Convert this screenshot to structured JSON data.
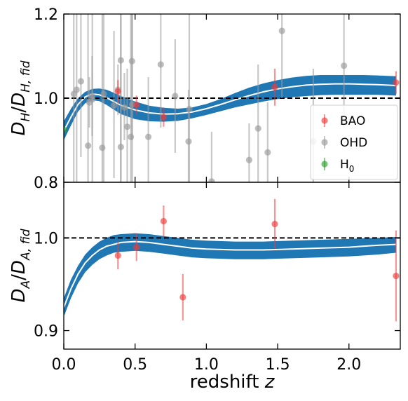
{
  "chart_data": [
    {
      "type": "scatter",
      "panel": "top",
      "ylabel": "D_H/D_{H,fid}",
      "ylabel_parts": {
        "main": "D",
        "sub1": "H",
        "slash": "/",
        "main2": "D",
        "sub2": "H, fid"
      },
      "xlim": [
        0,
        2.36
      ],
      "ylim": [
        0.8,
        1.2
      ],
      "yticks": [
        0.8,
        1.0,
        1.2
      ],
      "ytick_labels": [
        "0.8",
        "1.0",
        "1.2"
      ],
      "xticks": [
        0,
        0.5,
        1.0,
        1.5,
        2.0
      ],
      "reference_line": 1.0,
      "legend": {
        "placement": "lower right",
        "entries": [
          {
            "label": "BAO",
            "color": "#f03c3c"
          },
          {
            "label": "OHD",
            "color": "#9a9a9a"
          },
          {
            "label": "H",
            "sub": "0",
            "color": "#2ca02c"
          }
        ]
      },
      "band": {
        "color": "#1f77b4",
        "x": [
          0.0,
          0.05,
          0.1,
          0.15,
          0.2,
          0.25,
          0.3,
          0.35,
          0.4,
          0.5,
          0.6,
          0.7,
          0.8,
          0.9,
          1.0,
          1.1,
          1.2,
          1.3,
          1.4,
          1.5,
          1.6,
          1.7,
          1.8,
          1.9,
          2.0,
          2.1,
          2.2,
          2.33
        ],
        "upper": [
          0.945,
          0.975,
          1.0,
          1.015,
          1.022,
          1.023,
          1.02,
          1.013,
          1.005,
          0.992,
          0.982,
          0.977,
          0.975,
          0.978,
          0.986,
          0.998,
          1.012,
          1.025,
          1.035,
          1.043,
          1.049,
          1.053,
          1.055,
          1.055,
          1.055,
          1.055,
          1.054,
          1.052
        ],
        "center": [
          0.922,
          0.955,
          0.985,
          1.003,
          1.01,
          1.008,
          1.001,
          0.992,
          0.983,
          0.972,
          0.965,
          0.962,
          0.963,
          0.967,
          0.975,
          0.985,
          0.996,
          1.006,
          1.015,
          1.022,
          1.027,
          1.031,
          1.033,
          1.034,
          1.034,
          1.033,
          1.032,
          1.03
        ],
        "lower": [
          0.9,
          0.935,
          0.968,
          0.988,
          0.995,
          0.993,
          0.984,
          0.973,
          0.962,
          0.95,
          0.945,
          0.944,
          0.946,
          0.952,
          0.96,
          0.969,
          0.978,
          0.985,
          0.992,
          0.998,
          1.002,
          1.005,
          1.007,
          1.008,
          1.008,
          1.008,
          1.008,
          1.006
        ]
      },
      "series": [
        {
          "name": "OHD",
          "color": "#9a9a9a",
          "points": [
            {
              "x": 0.07,
              "y": 1.01,
              "lo": 0.8,
              "hi": 1.2
            },
            {
              "x": 0.09,
              "y": 1.02,
              "lo": 0.8,
              "hi": 1.2
            },
            {
              "x": 0.12,
              "y": 1.04,
              "lo": 0.86,
              "hi": 1.2
            },
            {
              "x": 0.17,
              "y": 0.887,
              "lo": 0.8,
              "hi": 1.2
            },
            {
              "x": 0.179,
              "y": 0.99,
              "lo": 0.93,
              "hi": 1.05
            },
            {
              "x": 0.199,
              "y": 1.005,
              "lo": 0.91,
              "hi": 1.1
            },
            {
              "x": 0.2,
              "y": 0.997,
              "lo": 0.8,
              "hi": 1.2
            },
            {
              "x": 0.27,
              "y": 0.882,
              "lo": 0.8,
              "hi": 1.2
            },
            {
              "x": 0.28,
              "y": 1.01,
              "lo": 0.8,
              "hi": 1.2
            },
            {
              "x": 0.352,
              "y": 0.983,
              "lo": 0.81,
              "hi": 1.16
            },
            {
              "x": 0.38,
              "y": 1.02,
              "lo": 0.96,
              "hi": 1.08
            },
            {
              "x": 0.4,
              "y": 0.884,
              "lo": 0.8,
              "hi": 1.2
            },
            {
              "x": 0.4,
              "y": 1.09,
              "lo": 0.8,
              "hi": 1.2
            },
            {
              "x": 0.425,
              "y": 0.978,
              "lo": 0.9,
              "hi": 1.06
            },
            {
              "x": 0.445,
              "y": 0.932,
              "lo": 0.8,
              "hi": 1.07
            },
            {
              "x": 0.47,
              "y": 0.908,
              "lo": 0.8,
              "hi": 1.2
            },
            {
              "x": 0.4783,
              "y": 1.088,
              "lo": 0.9,
              "hi": 1.2
            },
            {
              "x": 0.48,
              "y": 0.985,
              "lo": 0.8,
              "hi": 1.2
            },
            {
              "x": 0.593,
              "y": 0.908,
              "lo": 0.8,
              "hi": 1.05
            },
            {
              "x": 0.68,
              "y": 1.08,
              "lo": 0.93,
              "hi": 1.2
            },
            {
              "x": 0.781,
              "y": 1.005,
              "lo": 0.87,
              "hi": 1.14
            },
            {
              "x": 0.875,
              "y": 0.897,
              "lo": 0.8,
              "hi": 1.02
            },
            {
              "x": 0.88,
              "y": 0.974,
              "lo": 0.8,
              "hi": 1.2
            },
            {
              "x": 1.037,
              "y": 0.802,
              "lo": 0.8,
              "hi": 0.92
            },
            {
              "x": 1.3,
              "y": 0.853,
              "lo": 0.8,
              "hi": 0.94
            },
            {
              "x": 1.363,
              "y": 0.928,
              "lo": 0.8,
              "hi": 1.08
            },
            {
              "x": 1.43,
              "y": 0.871,
              "lo": 0.8,
              "hi": 0.99
            },
            {
              "x": 1.53,
              "y": 1.16,
              "lo": 1.0,
              "hi": 1.2
            },
            {
              "x": 1.75,
              "y": 0.897,
              "lo": 0.8,
              "hi": 1.07
            },
            {
              "x": 1.965,
              "y": 1.077,
              "lo": 0.93,
              "hi": 1.2
            }
          ]
        },
        {
          "name": "BAO",
          "color": "#f03c3c",
          "points": [
            {
              "x": 0.38,
              "y": 1.016,
              "lo": 0.989,
              "hi": 1.043
            },
            {
              "x": 0.51,
              "y": 0.984,
              "lo": 0.962,
              "hi": 1.006
            },
            {
              "x": 0.7,
              "y": 0.955,
              "lo": 0.932,
              "hi": 0.978
            },
            {
              "x": 1.48,
              "y": 1.026,
              "lo": 0.982,
              "hi": 1.07
            },
            {
              "x": 2.33,
              "y": 1.037,
              "lo": 1.01,
              "hi": 1.064
            }
          ]
        },
        {
          "name": "H0",
          "color": "#2ca02c",
          "points": [
            {
              "x": 0.0,
              "y": 0.925,
              "lo": 0.915,
              "hi": 0.935
            }
          ]
        }
      ]
    },
    {
      "type": "scatter",
      "panel": "bottom",
      "ylabel": "D_A/D_{A,fid}",
      "ylabel_parts": {
        "main": "D",
        "sub1": "A",
        "slash": "/",
        "main2": "D",
        "sub2": "A, fid"
      },
      "xlabel": "redshift z",
      "xlabel_parts": {
        "text": "redshift ",
        "italic": "z"
      },
      "xlim": [
        0,
        2.36
      ],
      "ylim": [
        0.88,
        1.06
      ],
      "yticks": [
        0.9,
        1.0
      ],
      "ytick_labels": [
        "0.9",
        "1.0"
      ],
      "xticks": [
        0,
        0.5,
        1.0,
        1.5,
        2.0
      ],
      "xtick_labels": [
        "0.0",
        "0.5",
        "1.0",
        "1.5",
        "2.0"
      ],
      "reference_line": 1.0,
      "band": {
        "color": "#1f77b4",
        "x": [
          0.0,
          0.05,
          0.1,
          0.15,
          0.2,
          0.25,
          0.3,
          0.35,
          0.4,
          0.5,
          0.6,
          0.7,
          0.8,
          0.9,
          1.0,
          1.2,
          1.4,
          1.6,
          1.8,
          2.0,
          2.2,
          2.33
        ],
        "upper": [
          0.935,
          0.955,
          0.97,
          0.982,
          0.99,
          0.996,
          1.0,
          1.003,
          1.004,
          1.005,
          1.004,
          1.002,
          1.0,
          0.998,
          0.997,
          0.996,
          0.996,
          0.997,
          0.998,
          0.999,
          1.0,
          1.001
        ],
        "center": [
          0.925,
          0.945,
          0.961,
          0.973,
          0.981,
          0.987,
          0.991,
          0.993,
          0.995,
          0.996,
          0.995,
          0.993,
          0.991,
          0.989,
          0.988,
          0.987,
          0.987,
          0.988,
          0.989,
          0.99,
          0.992,
          0.993
        ],
        "lower": [
          0.915,
          0.935,
          0.951,
          0.963,
          0.971,
          0.977,
          0.981,
          0.984,
          0.985,
          0.986,
          0.985,
          0.983,
          0.981,
          0.979,
          0.978,
          0.977,
          0.977,
          0.978,
          0.979,
          0.98,
          0.982,
          0.984
        ]
      },
      "series": [
        {
          "name": "BAO",
          "color": "#f03c3c",
          "points": [
            {
              "x": 0.38,
              "y": 0.981,
              "lo": 0.966,
              "hi": 0.996
            },
            {
              "x": 0.51,
              "y": 0.99,
              "lo": 0.975,
              "hi": 1.005
            },
            {
              "x": 0.7,
              "y": 1.018,
              "lo": 1.001,
              "hi": 1.035
            },
            {
              "x": 0.835,
              "y": 0.936,
              "lo": 0.911,
              "hi": 0.961
            },
            {
              "x": 1.48,
              "y": 1.015,
              "lo": 0.988,
              "hi": 1.042
            },
            {
              "x": 2.33,
              "y": 0.959,
              "lo": 0.91,
              "hi": 1.008
            }
          ]
        }
      ]
    }
  ]
}
